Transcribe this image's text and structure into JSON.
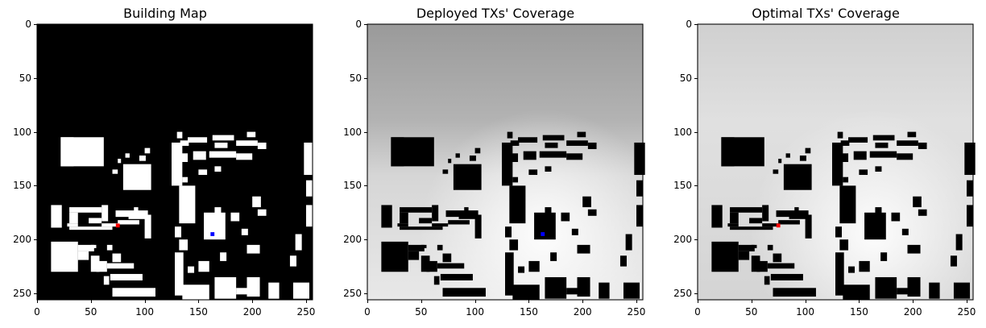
{
  "figure": {
    "panels": [
      {
        "title": "Building Map",
        "kind": "building_map",
        "marker": {
          "color": "#ff0000",
          "x": 75,
          "y": 187
        }
      },
      {
        "title": "Deployed TXs' Coverage",
        "kind": "deployed",
        "marker": {
          "color": "#0000ff",
          "x": 163,
          "y": 195
        }
      },
      {
        "title": "Optimal TXs' Coverage",
        "kind": "optimal",
        "marker": {
          "color": "#ff0000",
          "x": 75,
          "y": 187
        }
      }
    ],
    "building_map_extra_marker": {
      "color": "#0000ff",
      "x": 163,
      "y": 195
    },
    "x_ticks": [
      "0",
      "50",
      "100",
      "150",
      "200",
      "250"
    ],
    "y_ticks": [
      "0",
      "50",
      "100",
      "150",
      "200",
      "250"
    ],
    "tick_values": [
      0,
      50,
      100,
      150,
      200,
      250
    ],
    "grid_extent": 256,
    "colors": {
      "background_dark": "#000000",
      "building_light": "#ffffff",
      "coverage_mid": "#b8b8b8",
      "coverage_high": "#f2f2f2"
    }
  }
}
